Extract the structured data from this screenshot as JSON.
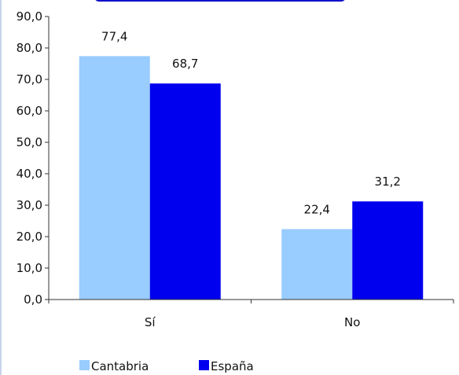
{
  "chart_data": {
    "type": "bar",
    "categories": [
      "Sí",
      "No"
    ],
    "series": [
      {
        "name": "Cantabria",
        "values": [
          77.4,
          22.4
        ],
        "labels": [
          "77,4",
          "22,4"
        ],
        "color": "#99ccff"
      },
      {
        "name": "España",
        "values": [
          68.7,
          31.2
        ],
        "labels": [
          "68,7",
          "31,2"
        ],
        "color": "#0000ee"
      }
    ],
    "ylim": [
      0,
      90
    ],
    "yticks": [
      0,
      10,
      20,
      30,
      40,
      50,
      60,
      70,
      80,
      90
    ],
    "ytick_labels": [
      "0,0",
      "10,0",
      "20,0",
      "30,0",
      "40,0",
      "50,0",
      "60,0",
      "70,0",
      "80,0",
      "90,0"
    ],
    "grid": false,
    "legend_position": "bottom-left"
  }
}
